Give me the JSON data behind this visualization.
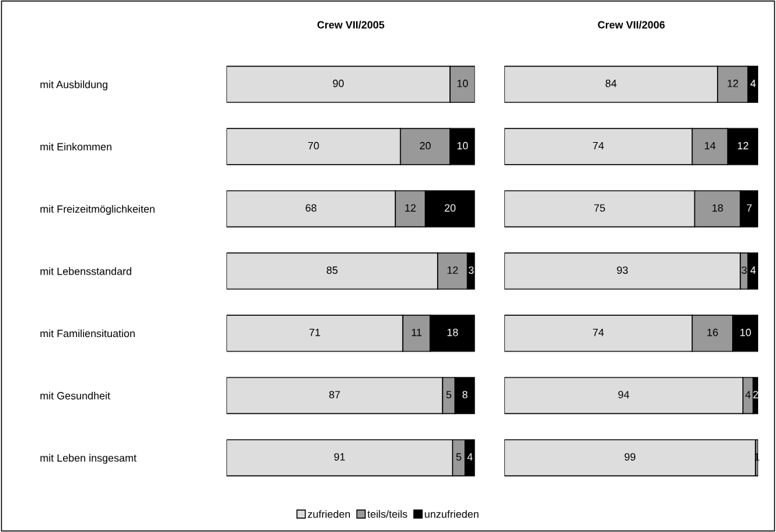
{
  "chart_data": [
    {
      "type": "bar",
      "orientation": "horizontal",
      "stacked": true,
      "title": "Crew VII/2005",
      "categories": [
        "mit Ausbildung",
        "mit Einkommen",
        "mit Freizeitmöglichkeiten",
        "mit Lebensstandard",
        "mit Familiensituation",
        "mit Gesundheit",
        "mit Leben insgesamt"
      ],
      "series": [
        {
          "name": "zufrieden",
          "color": "#dddddd",
          "values": [
            90,
            70,
            68,
            85,
            71,
            87,
            91
          ]
        },
        {
          "name": "teils/teils",
          "color": "#999999",
          "values": [
            10,
            20,
            12,
            12,
            11,
            5,
            5
          ]
        },
        {
          "name": "unzufrieden",
          "color": "#000000",
          "values": [
            null,
            10,
            20,
            3,
            18,
            8,
            4
          ]
        }
      ],
      "xlim": [
        0,
        100
      ],
      "tick_labels": "y",
      "data_labels": true,
      "legend": "bottom",
      "grid": false
    },
    {
      "type": "bar",
      "orientation": "horizontal",
      "stacked": true,
      "title": "Crew VII/2006",
      "categories": [
        null,
        null,
        null,
        null,
        null,
        null,
        null
      ],
      "series": [
        {
          "color": "#dddddd",
          "values": [
            84,
            74,
            75,
            93,
            74,
            94,
            99
          ]
        },
        {
          "color": "#999999",
          "values": [
            12,
            14,
            18,
            3,
            16,
            4,
            1
          ]
        },
        {
          "color": "#000000",
          "values": [
            4,
            12,
            7,
            4,
            10,
            2,
            null
          ]
        }
      ],
      "xlim": [
        0,
        100
      ],
      "tick_labels": false,
      "data_labels": true,
      "legend": false,
      "grid": false
    }
  ]
}
